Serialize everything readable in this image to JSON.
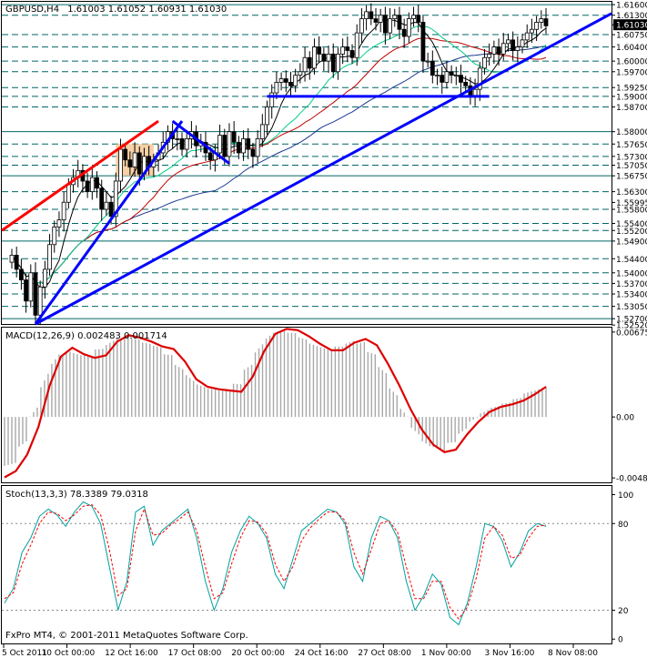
{
  "chart_data": [
    {
      "type": "candlestick",
      "panel": "price",
      "symbol_label": "GBPUSD,H4",
      "ohlc_label": "1.61003 1.61052 1.60931 1.61030",
      "current_price": "1.61030",
      "ylim": [
        1.5255,
        1.6168
      ],
      "y_tick_labels": [
        "1.61600",
        "1.61300",
        "1.61030",
        "1.60750",
        "1.60400",
        "1.60000",
        "1.59700",
        "1.59250",
        "1.59000",
        "1.58700",
        "1.58000",
        "1.57650",
        "1.57300",
        "1.57050",
        "1.56750",
        "1.56300",
        "1.55995",
        "1.55800",
        "1.55400",
        "1.55200",
        "1.54900",
        "1.54400",
        "1.54000",
        "1.53700",
        "1.53400",
        "1.53050",
        "1.52700",
        "1.52520"
      ],
      "y_tick_values": [
        1.616,
        1.613,
        1.6103,
        1.6075,
        1.604,
        1.6,
        1.597,
        1.5925,
        1.59,
        1.587,
        1.58,
        1.5765,
        1.573,
        1.5705,
        1.5675,
        1.563,
        1.55995,
        1.558,
        1.554,
        1.552,
        1.549,
        1.544,
        1.54,
        1.537,
        1.534,
        1.5305,
        1.527,
        1.5252
      ],
      "closes": [
        1.545,
        1.541,
        1.538,
        1.532,
        1.54,
        1.528,
        1.536,
        1.541,
        1.548,
        1.553,
        1.555,
        1.56,
        1.565,
        1.567,
        1.569,
        1.566,
        1.563,
        1.567,
        1.564,
        1.558,
        1.56,
        1.556,
        1.566,
        1.575,
        1.572,
        1.57,
        1.574,
        1.568,
        1.573,
        1.57,
        1.572,
        1.574,
        1.577,
        1.58,
        1.578,
        1.578,
        1.575,
        1.578,
        1.58,
        1.576,
        1.577,
        1.574,
        1.572,
        1.574,
        1.579,
        1.573,
        1.58,
        1.577,
        1.574,
        1.578,
        1.575,
        1.573,
        1.578,
        1.582,
        1.587,
        1.591,
        1.594,
        1.595,
        1.594,
        1.593,
        1.596,
        1.597,
        1.601,
        1.598,
        1.604,
        1.602,
        1.6,
        1.602,
        1.597,
        1.602,
        1.604,
        1.603,
        1.601,
        1.608,
        1.612,
        1.614,
        1.612,
        1.611,
        1.613,
        1.608,
        1.612,
        1.613,
        1.609,
        1.607,
        1.612,
        1.613,
        1.611,
        1.6,
        1.6,
        1.596,
        1.596,
        1.594,
        1.597,
        1.596,
        1.596,
        1.594,
        1.593,
        1.59,
        1.592,
        1.598,
        1.601,
        1.602,
        1.604,
        1.602,
        1.605,
        1.606,
        1.603,
        1.604,
        1.606,
        1.608,
        1.609,
        1.611,
        1.612,
        1.61
      ],
      "horizontal_levels": [
        1.616,
        1.613,
        1.6075,
        1.604,
        1.6,
        1.597,
        1.5925,
        1.59,
        1.587,
        1.58,
        1.5765,
        1.573,
        1.5705,
        1.5675,
        1.563,
        1.558,
        1.554,
        1.552,
        1.549,
        1.544,
        1.54,
        1.537,
        1.534,
        1.5305,
        1.527
      ],
      "solid_levels": [
        1.616,
        1.58,
        1.5675,
        1.549,
        1.527
      ],
      "x_tick_labels": [
        "5 Oct 2011",
        "10 Oct 00:00",
        "12 Oct 16:00",
        "17 Oct 08:00",
        "20 Oct 00:00",
        "24 Oct 16:00",
        "27 Oct 08:00",
        "1 Nov 00:00",
        "3 Nov 16:00",
        "8 Nov 08:00"
      ],
      "colors": {
        "candles": "#000000",
        "levels": "#006666",
        "trendlines": "#0000ff",
        "red_trendline": "#ff0000",
        "ma_slow": "#1a3a8f",
        "ma_mid": "#c00000",
        "ma_fast": "#00cc88",
        "ma_short": "#000000",
        "box": "#f5c896"
      }
    },
    {
      "type": "histogram+line",
      "panel": "macd",
      "label": "MACD(12,26,9) 0.002483 0.001714",
      "ylim": [
        -0.0052,
        0.0071
      ],
      "y_tick_labels": [
        "0.00675",
        "0.00",
        "-0.00485"
      ],
      "y_tick_values": [
        0.00675,
        0.0,
        -0.00485
      ],
      "signal": [
        -0.0048,
        -0.0043,
        -0.003,
        -0.0008,
        0.0025,
        0.0048,
        0.0055,
        0.005,
        0.0047,
        0.0049,
        0.006,
        0.0065,
        0.0063,
        0.006,
        0.0056,
        0.0054,
        0.0044,
        0.003,
        0.0024,
        0.0022,
        0.0021,
        0.002,
        0.0032,
        0.0052,
        0.0066,
        0.007,
        0.0069,
        0.0064,
        0.0058,
        0.0053,
        0.0053,
        0.0059,
        0.0062,
        0.0057,
        0.0042,
        0.0025,
        0.0006,
        -0.001,
        -0.0022,
        -0.0028,
        -0.0026,
        -0.0014,
        -0.0004,
        0.0004,
        0.0008,
        0.001,
        0.0013,
        0.0018,
        0.0024
      ],
      "colors": {
        "signal": "#dd0000",
        "histogram": "#a8a8a8"
      }
    },
    {
      "type": "line",
      "panel": "stochastic",
      "label": "Stoch(13,3,3) 78.3389 79.0318",
      "ylim": [
        0,
        100
      ],
      "y_tick_labels": [
        "100",
        "80",
        "20",
        "0"
      ],
      "y_tick_values": [
        100,
        80,
        20,
        0
      ],
      "main": [
        25,
        35,
        60,
        70,
        85,
        90,
        86,
        78,
        88,
        95,
        92,
        80,
        50,
        20,
        40,
        88,
        92,
        65,
        75,
        80,
        85,
        90,
        70,
        40,
        20,
        35,
        60,
        75,
        85,
        80,
        70,
        45,
        35,
        55,
        75,
        80,
        85,
        90,
        88,
        80,
        50,
        40,
        70,
        85,
        82,
        70,
        40,
        20,
        30,
        45,
        38,
        15,
        10,
        25,
        50,
        80,
        78,
        68,
        50,
        60,
        75,
        80,
        78
      ],
      "signal_line": [
        28,
        32,
        52,
        65,
        80,
        88,
        87,
        82,
        86,
        92,
        93,
        86,
        62,
        30,
        35,
        75,
        90,
        72,
        73,
        79,
        83,
        88,
        75,
        50,
        28,
        32,
        52,
        70,
        82,
        81,
        73,
        52,
        40,
        50,
        68,
        77,
        83,
        88,
        88,
        82,
        60,
        45,
        62,
        80,
        82,
        74,
        50,
        28,
        28,
        40,
        40,
        22,
        14,
        22,
        42,
        70,
        78,
        72,
        56,
        58,
        70,
        78,
        79
      ],
      "colors": {
        "main": "#00a0a0",
        "signal": "#ff0000"
      }
    }
  ],
  "footer": {
    "copyright": "FxPro MT4, © 2001-2011 MetaQuotes Software Corp."
  }
}
